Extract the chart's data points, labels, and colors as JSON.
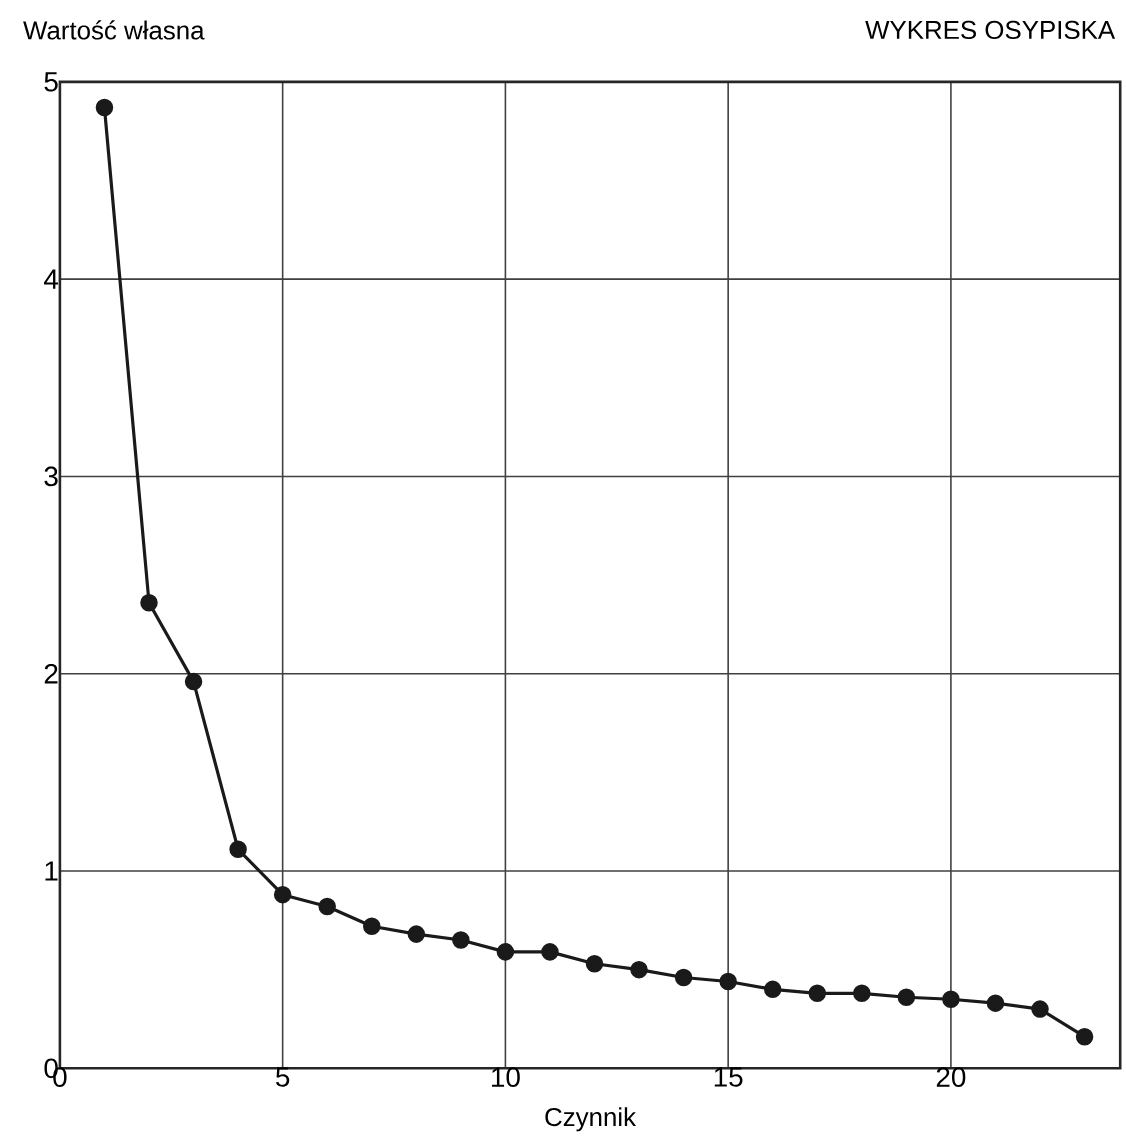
{
  "chart_data": {
    "type": "line",
    "title": "WYKRES OSYPISKA",
    "xlabel": "Czynnik",
    "ylabel": "Wartość własna",
    "x": [
      1,
      2,
      3,
      4,
      5,
      6,
      7,
      8,
      9,
      10,
      11,
      12,
      13,
      14,
      15,
      16,
      17,
      18,
      19,
      20,
      21,
      22,
      23
    ],
    "series": [
      {
        "color": "#1a1a1a",
        "values": [
          4.87,
          2.36,
          1.96,
          1.11,
          0.88,
          0.82,
          0.72,
          0.68,
          0.65,
          0.59,
          0.59,
          0.53,
          0.5,
          0.46,
          0.44,
          0.4,
          0.38,
          0.38,
          0.36,
          0.35,
          0.33,
          0.3,
          0.16
        ]
      }
    ],
    "xlim": [
      0,
      23.8
    ],
    "ylim": [
      0,
      5
    ],
    "xticks": [
      0,
      5,
      10,
      15,
      20
    ],
    "yticks": [
      0,
      1,
      2,
      3,
      4,
      5
    ],
    "grid": true,
    "marker": "circle",
    "line_style": "solid"
  }
}
